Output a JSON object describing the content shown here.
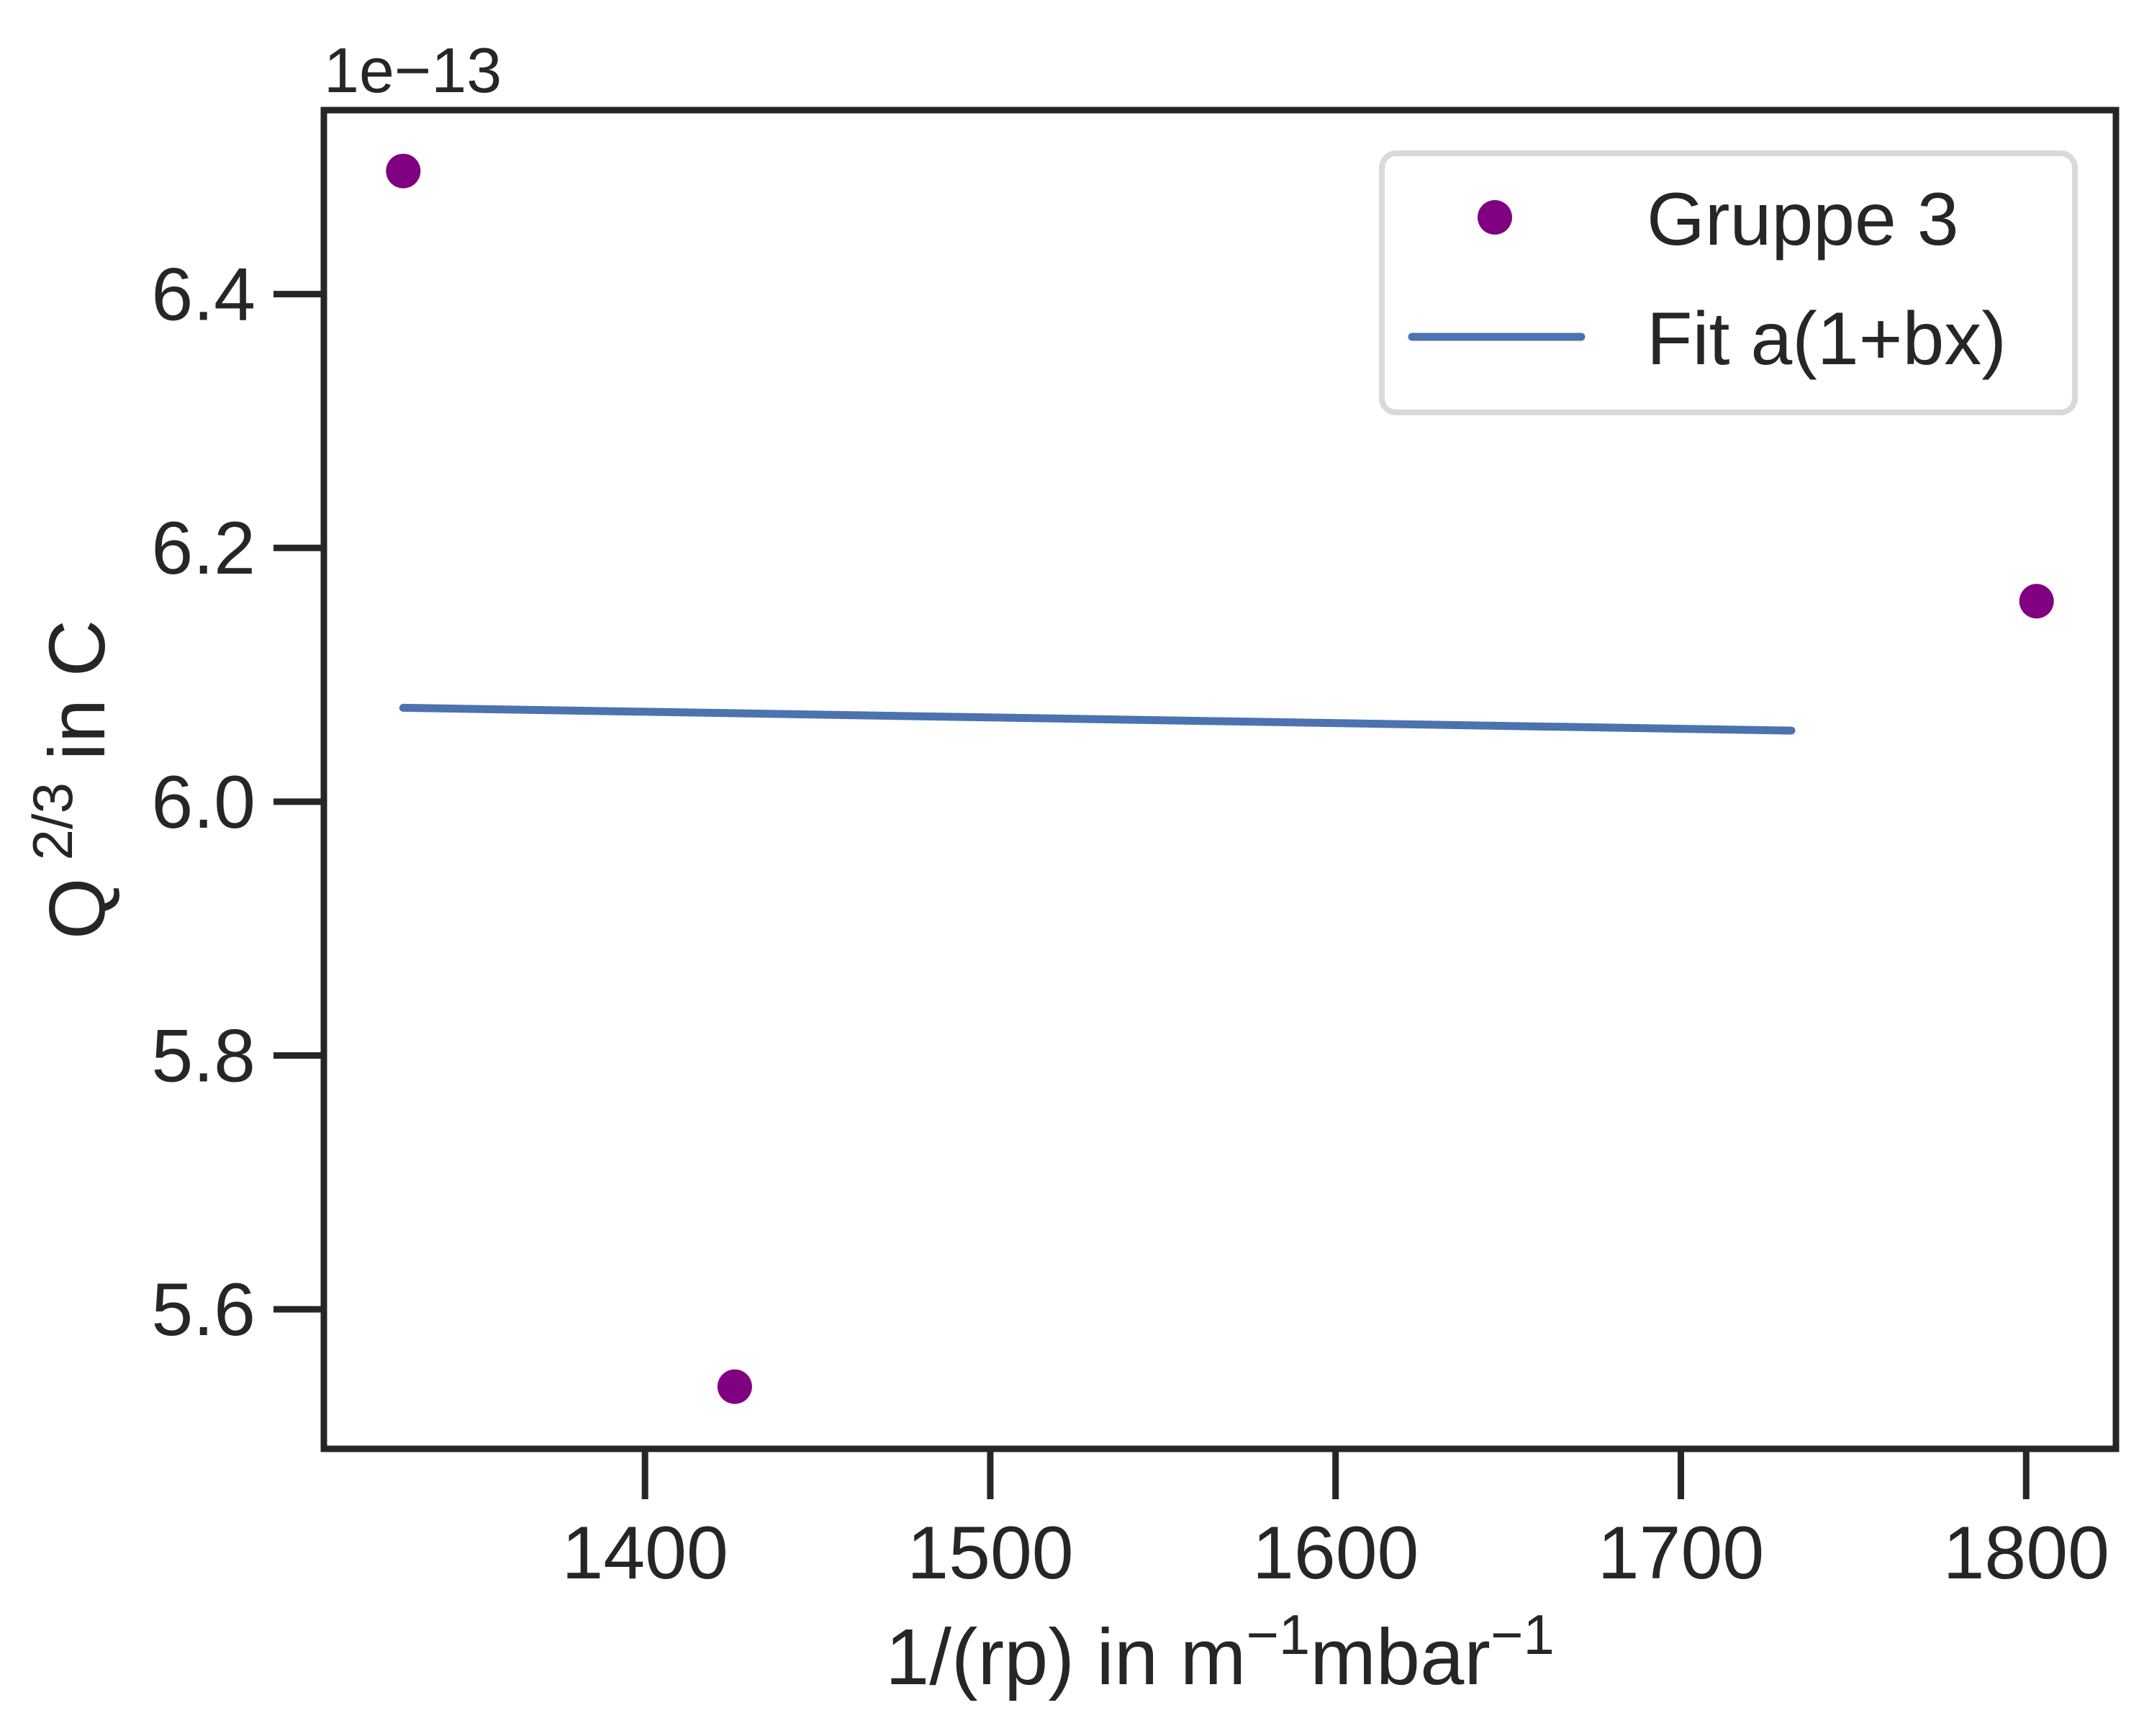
{
  "chart_data": {
    "type": "scatter",
    "xlabel_main": "1/(rp) in m",
    "xlabel_sup1": "−1",
    "xlabel_mid": "mbar",
    "xlabel_sup2": "−1",
    "ylabel_main": "Q",
    "ylabel_sup": "2/3",
    "ylabel_tail": " in C",
    "offset_text": "1e−13",
    "xlim": [
      1307,
      1826
    ],
    "ylim": [
      5.49,
      6.545
    ],
    "x_ticks": [
      1400,
      1500,
      1600,
      1700,
      1800
    ],
    "x_tick_labels": [
      "1400",
      "1500",
      "1600",
      "1700",
      "1800"
    ],
    "y_ticks": [
      5.6,
      5.8,
      6.0,
      6.2,
      6.4
    ],
    "y_tick_labels": [
      "5.6",
      "5.8",
      "6.0",
      "6.2",
      "6.4"
    ],
    "grid": false,
    "legend_position": "top-right",
    "series": [
      {
        "name": "Gruppe 3",
        "kind": "scatter",
        "color": "#800080",
        "points": [
          {
            "x": 1330,
            "y": 6.497
          },
          {
            "x": 1426,
            "y": 5.539
          },
          {
            "x": 1803,
            "y": 6.158
          }
        ]
      },
      {
        "name": "Fit a(1+bx)",
        "kind": "line",
        "color": "#4c72b0",
        "points": [
          {
            "x": 1330,
            "y": 6.074
          },
          {
            "x": 1732,
            "y": 6.056
          }
        ]
      }
    ]
  }
}
